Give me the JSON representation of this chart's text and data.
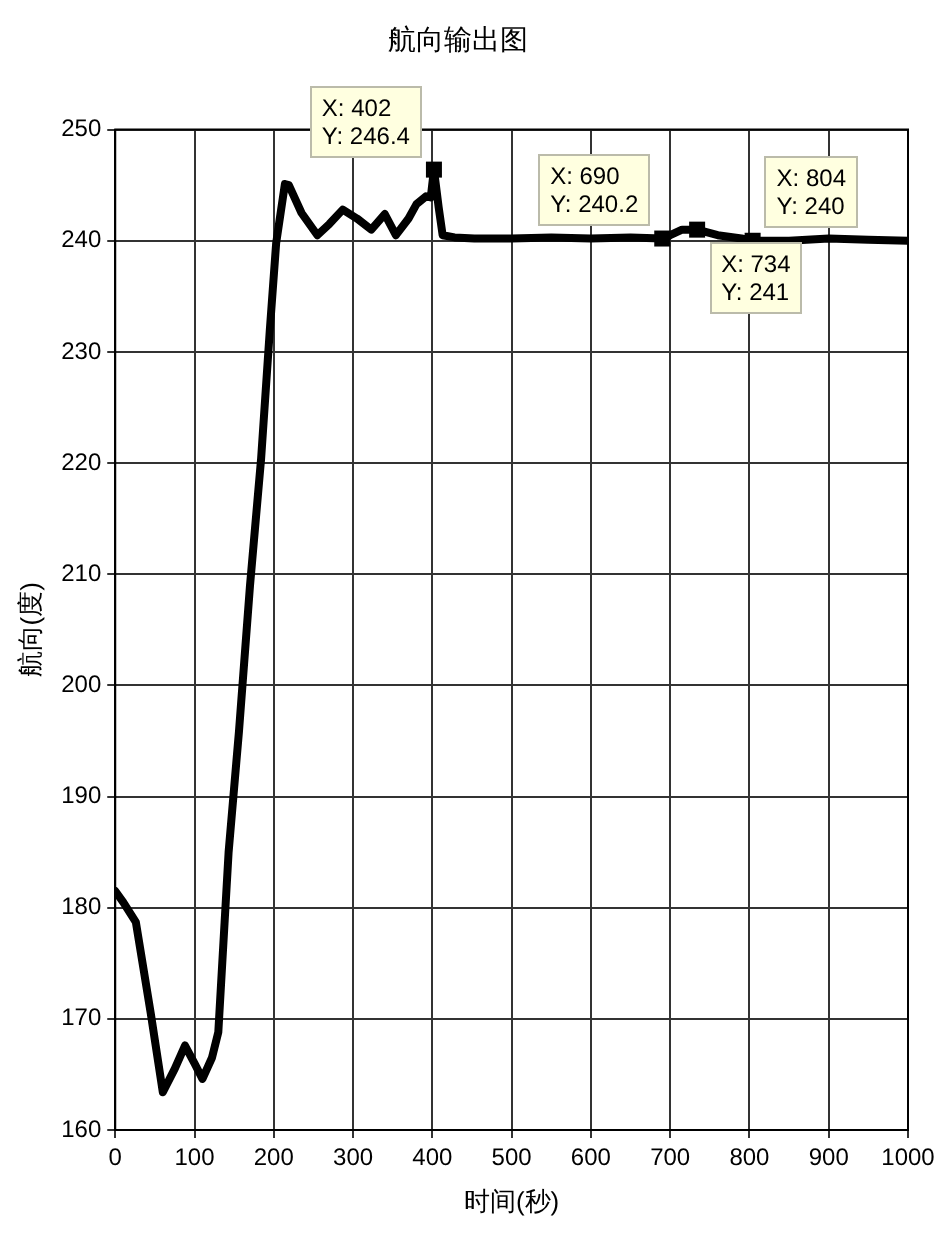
{
  "chart_data": {
    "type": "line",
    "title": "航向输出图",
    "xlabel": "时间(秒)",
    "ylabel": "航向(度)",
    "xlim": [
      0,
      1000
    ],
    "xticks": [
      0,
      100,
      200,
      300,
      400,
      500,
      600,
      700,
      800,
      900,
      1000
    ],
    "ylim": [
      160,
      250
    ],
    "yticks": [
      160,
      170,
      180,
      190,
      200,
      210,
      220,
      230,
      240,
      250
    ],
    "grid": true,
    "legend": false,
    "line_style": "solid",
    "marker": "none",
    "series": [
      {
        "color": "#000000",
        "x": [
          0,
          10,
          26,
          45,
          60,
          75,
          88,
          100,
          110,
          122,
          130,
          143,
          156,
          170,
          184,
          195,
          203,
          214,
          219,
          235,
          255,
          270,
          287,
          305,
          323,
          340,
          354,
          370,
          380,
          392,
          398,
          402,
          408,
          413,
          428,
          453,
          500,
          550,
          600,
          650,
          690,
          700,
          715,
          734,
          760,
          790,
          804,
          850,
          900,
          950,
          1000
        ],
        "values": [
          181.5,
          180.5,
          178.7,
          170.4,
          163.4,
          165.5,
          167.6,
          166,
          164.6,
          166.5,
          168.8,
          185,
          195.8,
          209,
          220.4,
          232,
          239.8,
          245.1,
          245,
          242.5,
          240.5,
          241.5,
          242.8,
          242,
          241,
          242.4,
          240.5,
          242,
          243.3,
          244,
          243.9,
          246.4,
          243,
          240.5,
          240.3,
          240.2,
          240.2,
          240.3,
          240.2,
          240.3,
          240.2,
          240.5,
          241,
          241,
          240.5,
          240.2,
          240,
          240,
          240.2,
          240.1,
          240
        ]
      }
    ],
    "annotations": [
      {
        "text": "X: 402\nY: 246.4",
        "x": 402,
        "y": 246.4
      },
      {
        "text": "X: 690\nY: 240.2",
        "x": 690,
        "y": 240.2
      },
      {
        "text": "X: 734\nY: 241",
        "x": 734,
        "y": 241
      },
      {
        "text": "X: 804\nY: 240",
        "x": 804,
        "y": 240
      }
    ]
  }
}
